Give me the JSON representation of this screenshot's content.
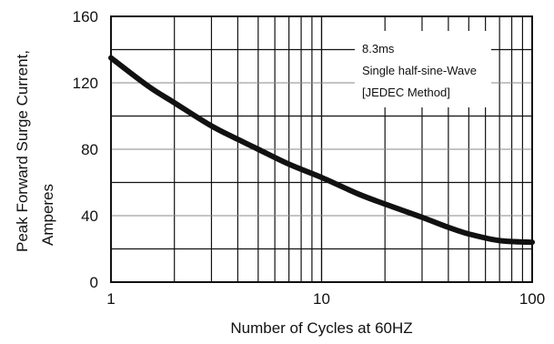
{
  "chart_data": {
    "type": "line",
    "title": "",
    "xlabel": "Number of Cycles at 60HZ",
    "ylabel_line1": "Peak Forward Surge Current,",
    "ylabel_line2": "Amperes",
    "x_scale": "log",
    "xlim": [
      1,
      100
    ],
    "ylim": [
      0,
      160
    ],
    "x_ticks": [
      1,
      10,
      100
    ],
    "x_tick_labels": [
      "1",
      "10",
      "100"
    ],
    "y_ticks": [
      0,
      40,
      80,
      120,
      160
    ],
    "y_tick_labels": [
      "0",
      "40",
      "80",
      "120",
      "160"
    ],
    "grid": true,
    "annotation": [
      "8.3ms",
      "Single half-sine-Wave",
      "[JEDEC Method]"
    ],
    "series": [
      {
        "x": [
          1,
          1.5,
          2,
          3,
          4,
          5,
          7,
          10,
          15,
          20,
          30,
          40,
          50,
          70,
          100
        ],
        "y": [
          135,
          118,
          108,
          94,
          86,
          80,
          71,
          63,
          53,
          47,
          39,
          33,
          29,
          25,
          24
        ]
      }
    ],
    "line_color": "#111111"
  }
}
